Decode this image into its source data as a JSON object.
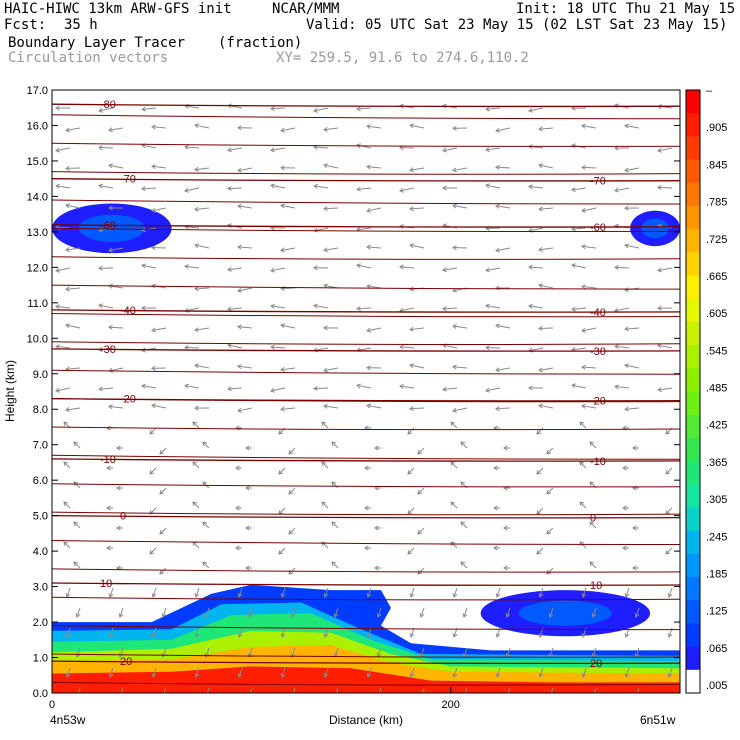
{
  "header": {
    "model": "HAIC-HIWC 13km ARW-GFS init",
    "org": "NCAR/MMM",
    "init": "Init: 18 UTC Thu 21 May 15",
    "fcst_label": "Fcst:",
    "fcst_value": "35 h",
    "valid": "Valid: 05 UTC Sat 23 May 15 (02 LST Sat 23 May 15)",
    "field": "Boundary Layer Tracer",
    "units": "(fraction)",
    "vectors": "Circulation vectors",
    "xy": "XY= 259.5, 91.6 to 274.6,110.2"
  },
  "chart_data": {
    "type": "heatmap",
    "xlabel": "Distance (km)",
    "ylabel": "Height (km)",
    "xlim": [
      0,
      315
    ],
    "ylim": [
      0,
      17
    ],
    "x_ticks": [
      {
        "value": 0,
        "label": "0"
      },
      {
        "value": 200,
        "label": "200"
      }
    ],
    "x_end_labels": {
      "left": "4n53w",
      "right": "6n51w"
    },
    "y_ticks": [
      "0.0",
      "1.0",
      "2.0",
      "3.0",
      "4.0",
      "5.0",
      "6.0",
      "7.0",
      "8.0",
      "9.0",
      "10.0",
      "11.0",
      "12.0",
      "13.0",
      "14.0",
      "15.0",
      "16.0",
      "17.0"
    ],
    "colorbar_labels": [
      "–",
      ".905",
      ".845",
      ".785",
      ".725",
      ".665",
      ".605",
      ".545",
      ".485",
      ".425",
      ".365",
      ".305",
      ".245",
      ".185",
      ".125",
      ".065",
      ".005"
    ],
    "colorbar_colors": [
      "#ff0000",
      "#ff1e00",
      "#ff3c00",
      "#ff5a00",
      "#ff7800",
      "#ff9600",
      "#ffb400",
      "#ffd200",
      "#fff000",
      "#e6f500",
      "#c8f000",
      "#aaf000",
      "#8cf000",
      "#6ef014",
      "#50eb32",
      "#32e650",
      "#1ee678",
      "#14e6a0",
      "#0ad2c8",
      "#00b4f0",
      "#0096ff",
      "#0078ff",
      "#005aff",
      "#003cff",
      "#1e1eff",
      "#ffffff"
    ],
    "temperature_contours": [
      {
        "label": "-80",
        "height": 16.6
      },
      {
        "label": "-70",
        "height": 14.5
      },
      {
        "label": "-60",
        "height": 13.2
      },
      {
        "label": "-40",
        "height": 10.8
      },
      {
        "label": "-30",
        "height": 9.7
      },
      {
        "label": "-20",
        "height": 8.3
      },
      {
        "label": "-10",
        "height": 6.6
      },
      {
        "label": "0",
        "height": 5.0
      },
      {
        "label": "10",
        "height": 3.1
      },
      {
        "label": "20",
        "height": 0.9
      }
    ],
    "tracer_layers": [
      {
        "value": 0.95,
        "top_profile": [
          [
            0,
            0.55
          ],
          [
            60,
            0.6
          ],
          [
            100,
            0.75
          ],
          [
            150,
            0.7
          ],
          [
            190,
            0.35
          ],
          [
            250,
            0.3
          ],
          [
            315,
            0.3
          ]
        ]
      },
      {
        "value": 0.75,
        "top_profile": [
          [
            0,
            0.9
          ],
          [
            60,
            0.95
          ],
          [
            100,
            1.3
          ],
          [
            140,
            1.35
          ],
          [
            170,
            0.85
          ],
          [
            200,
            0.6
          ],
          [
            315,
            0.55
          ]
        ]
      },
      {
        "value": 0.55,
        "top_profile": [
          [
            0,
            1.15
          ],
          [
            60,
            1.25
          ],
          [
            100,
            1.75
          ],
          [
            140,
            1.7
          ],
          [
            170,
            1.1
          ],
          [
            200,
            0.75
          ],
          [
            315,
            0.7
          ]
        ]
      },
      {
        "value": 0.35,
        "top_profile": [
          [
            0,
            1.45
          ],
          [
            60,
            1.5
          ],
          [
            90,
            2.2
          ],
          [
            130,
            2.25
          ],
          [
            160,
            1.5
          ],
          [
            190,
            0.95
          ],
          [
            315,
            0.9
          ]
        ]
      },
      {
        "value": 0.2,
        "top_profile": [
          [
            0,
            1.75
          ],
          [
            60,
            1.8
          ],
          [
            85,
            2.5
          ],
          [
            125,
            2.55
          ],
          [
            155,
            1.8
          ],
          [
            185,
            1.1
          ],
          [
            315,
            1.05
          ]
        ]
      },
      {
        "value": 0.05,
        "top_profile": [
          [
            0,
            2.0
          ],
          [
            50,
            2.0
          ],
          [
            80,
            2.8
          ],
          [
            100,
            3.05
          ],
          [
            140,
            2.9
          ],
          [
            165,
            2.9
          ],
          [
            170,
            2.4
          ],
          [
            165,
            1.9
          ],
          [
            180,
            1.4
          ],
          [
            220,
            1.2
          ],
          [
            315,
            1.2
          ]
        ]
      }
    ],
    "upper_tracer_patches": [
      {
        "x_range": [
          0,
          60
        ],
        "height_range": [
          12.4,
          13.8
        ],
        "value": 0.05
      },
      {
        "x_range": [
          290,
          315
        ],
        "height_range": [
          12.6,
          13.6
        ],
        "value": 0.05
      },
      {
        "x_range": [
          215,
          300
        ],
        "height_range": [
          1.6,
          2.9
        ],
        "value": 0.05
      }
    ]
  }
}
